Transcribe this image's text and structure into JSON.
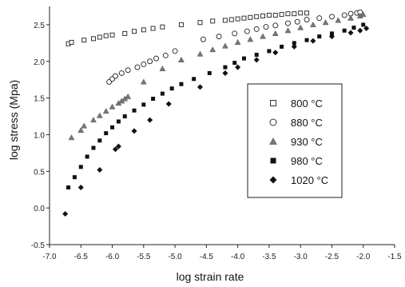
{
  "chart_data": {
    "type": "scatter",
    "xlabel": "log strain rate",
    "ylabel": "log stress (Mpa)",
    "xlim": [
      -7.0,
      -1.5
    ],
    "ylim": [
      -0.5,
      2.75
    ],
    "xticks": [
      -7.0,
      -6.5,
      -6.0,
      -5.5,
      -5.0,
      -4.5,
      -4.0,
      -3.5,
      -3.0,
      -2.5,
      -2.0,
      -1.5
    ],
    "xtick_labels": [
      "-7.0",
      "-6.5",
      "-6.0",
      "-5.5",
      "-5.0",
      "-4.5",
      "-4.0",
      "-3.5",
      "-3.0",
      "-2.5",
      "-2.0",
      "-1.5"
    ],
    "yticks": [
      -0.5,
      0.0,
      0.5,
      1.0,
      1.5,
      2.0,
      2.5
    ],
    "ytick_labels": [
      "-0.5",
      "0.0",
      "0.5",
      "1.0",
      "1.5",
      "2.0",
      "2.5"
    ],
    "grid": false,
    "legend_position": "center-right",
    "series": [
      {
        "name": "800 °C",
        "marker": "open-square",
        "color": "#333333",
        "x": [
          -6.7,
          -6.65,
          -6.45,
          -6.3,
          -6.2,
          -6.1,
          -6.0,
          -5.8,
          -5.65,
          -5.5,
          -5.35,
          -5.2,
          -4.9,
          -4.6,
          -4.4,
          -4.2,
          -4.1,
          -4.0,
          -3.9,
          -3.8,
          -3.7,
          -3.6,
          -3.5,
          -3.4,
          -3.3,
          -3.2,
          -3.1,
          -3.0,
          -2.9
        ],
        "y": [
          2.24,
          2.26,
          2.29,
          2.31,
          2.33,
          2.35,
          2.36,
          2.38,
          2.41,
          2.43,
          2.45,
          2.47,
          2.5,
          2.53,
          2.55,
          2.56,
          2.57,
          2.58,
          2.59,
          2.6,
          2.61,
          2.62,
          2.63,
          2.63,
          2.64,
          2.65,
          2.65,
          2.66,
          2.66
        ]
      },
      {
        "name": "880 °C",
        "marker": "open-circle",
        "color": "#333333",
        "x": [
          -6.05,
          -6.0,
          -5.95,
          -5.85,
          -5.75,
          -5.6,
          -5.5,
          -5.4,
          -5.3,
          -5.15,
          -5.0,
          -4.55,
          -4.3,
          -4.05,
          -3.85,
          -3.7,
          -3.55,
          -3.4,
          -3.2,
          -3.05,
          -2.9,
          -2.7,
          -2.5,
          -2.3,
          -2.2,
          -2.1,
          -2.05
        ],
        "y": [
          1.72,
          1.76,
          1.8,
          1.84,
          1.88,
          1.92,
          1.96,
          2.0,
          2.04,
          2.08,
          2.14,
          2.3,
          2.34,
          2.38,
          2.41,
          2.44,
          2.47,
          2.49,
          2.52,
          2.54,
          2.57,
          2.59,
          2.61,
          2.63,
          2.65,
          2.66,
          2.67
        ]
      },
      {
        "name": "930 °C",
        "marker": "filled-triangle",
        "color": "#777777",
        "x": [
          -6.65,
          -6.5,
          -6.45,
          -6.3,
          -6.2,
          -6.1,
          -6.0,
          -5.9,
          -5.85,
          -5.8,
          -5.75,
          -5.5,
          -5.2,
          -4.9,
          -4.6,
          -4.4,
          -4.2,
          -4.0,
          -3.8,
          -3.6,
          -3.4,
          -3.2,
          -3.0,
          -2.8,
          -2.6,
          -2.4,
          -2.2,
          -2.05,
          -2.0
        ],
        "y": [
          0.96,
          1.06,
          1.12,
          1.2,
          1.26,
          1.32,
          1.38,
          1.43,
          1.46,
          1.49,
          1.52,
          1.72,
          1.9,
          2.02,
          2.1,
          2.16,
          2.21,
          2.26,
          2.3,
          2.34,
          2.38,
          2.42,
          2.46,
          2.5,
          2.53,
          2.56,
          2.59,
          2.62,
          2.64
        ]
      },
      {
        "name": "980 °C",
        "marker": "filled-square",
        "color": "#111111",
        "x": [
          -6.7,
          -6.6,
          -6.5,
          -6.4,
          -6.3,
          -6.2,
          -6.1,
          -6.0,
          -5.9,
          -5.8,
          -5.65,
          -5.5,
          -5.35,
          -5.2,
          -5.05,
          -4.9,
          -4.7,
          -4.45,
          -4.2,
          -4.05,
          -3.9,
          -3.7,
          -3.5,
          -3.3,
          -3.1,
          -2.9,
          -2.7,
          -2.5,
          -2.3,
          -2.15,
          -2.0
        ],
        "y": [
          0.28,
          0.42,
          0.56,
          0.7,
          0.82,
          0.92,
          1.02,
          1.1,
          1.18,
          1.25,
          1.33,
          1.41,
          1.49,
          1.56,
          1.63,
          1.69,
          1.76,
          1.84,
          1.92,
          1.98,
          2.04,
          2.09,
          2.14,
          2.2,
          2.25,
          2.29,
          2.34,
          2.38,
          2.42,
          2.46,
          2.5
        ]
      },
      {
        "name": "1020 °C",
        "marker": "filled-diamond",
        "color": "#111111",
        "x": [
          -6.75,
          -6.5,
          -6.2,
          -5.95,
          -5.9,
          -5.65,
          -5.4,
          -5.1,
          -4.6,
          -4.2,
          -4.0,
          -3.7,
          -3.4,
          -3.1,
          -2.8,
          -2.5,
          -2.2,
          -2.05,
          -1.95
        ],
        "y": [
          -0.08,
          0.28,
          0.52,
          0.8,
          0.84,
          1.05,
          1.2,
          1.42,
          1.65,
          1.84,
          1.92,
          2.02,
          2.12,
          2.2,
          2.28,
          2.34,
          2.39,
          2.42,
          2.45
        ]
      }
    ]
  }
}
